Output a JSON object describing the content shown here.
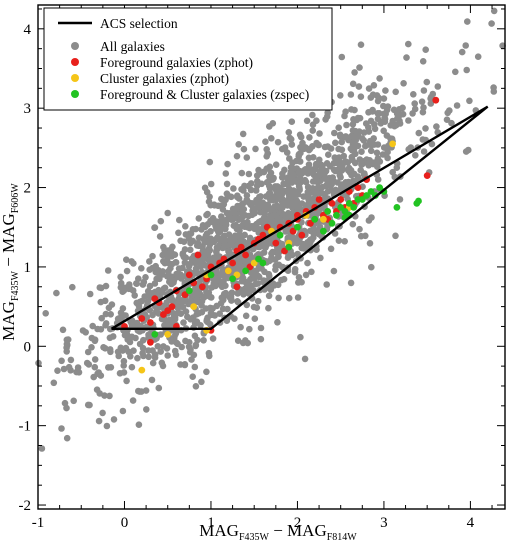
{
  "chart_data": {
    "type": "scatter",
    "title": "",
    "xlabel": {
      "base": "MAG",
      "sub1": "F435W",
      "dash": " − ",
      "base2": "MAG",
      "sub2": "F814W"
    },
    "ylabel": {
      "base": "MAG",
      "sub1": "F435W",
      "dash": " − ",
      "base2": "MAG",
      "sub2": "F606W"
    },
    "xlim": [
      -1,
      4.4
    ],
    "ylim": [
      -2.05,
      4.3
    ],
    "xticks": [
      "-1",
      "0",
      "1",
      "2",
      "3",
      "4"
    ],
    "yticks": [
      "-2",
      "-1",
      "0",
      "1",
      "2",
      "3",
      "4"
    ],
    "grid": false,
    "legend_position": "top-left",
    "legend": [
      {
        "label": "ACS selection",
        "kind": "line",
        "color": "#000000"
      },
      {
        "label": "All galaxies",
        "kind": "marker",
        "color": "#8c8c8c"
      },
      {
        "label": "Foreground galaxies (zphot)",
        "kind": "marker",
        "color": "#e8201c"
      },
      {
        "label": "Cluster galaxies (zphot)",
        "kind": "marker",
        "color": "#f5c518"
      },
      {
        "label": "Foreground & Cluster galaxies (zspec)",
        "kind": "marker",
        "color": "#22c322"
      }
    ],
    "selection_polygon": [
      [
        -0.15,
        0.22
      ],
      [
        1.0,
        0.22
      ],
      [
        4.2,
        3.02
      ],
      [
        -0.15,
        0.22
      ]
    ],
    "all_galaxies_distribution": {
      "count": 1800,
      "x_mean": 1.5,
      "x_sd": 0.95,
      "slope": 0.78,
      "intercept": 0.22,
      "scatter": 0.5
    },
    "series": [
      {
        "name": "Foreground galaxies (zphot)",
        "color": "#e8201c",
        "x": [
          0.0,
          0.2,
          0.3,
          0.4,
          0.5,
          0.6,
          0.7,
          0.8,
          0.9,
          1.0,
          1.1,
          1.2,
          1.3,
          1.4,
          1.5,
          1.6,
          1.7,
          1.8,
          1.9,
          2.0,
          2.1,
          2.2,
          2.3,
          2.4,
          2.5,
          2.6,
          2.7,
          2.8,
          0.35,
          0.55,
          0.75,
          0.95,
          1.15,
          1.35,
          1.55,
          1.75,
          1.95,
          2.15,
          2.35,
          2.55,
          2.75,
          0.45,
          0.85,
          1.25,
          1.65,
          2.05,
          2.45,
          2.25,
          2.65,
          1.45,
          1.85,
          3.6,
          3.5,
          0.6,
          0.3,
          1.0,
          2.0,
          1.3
        ],
        "y": [
          0.25,
          0.35,
          0.3,
          0.55,
          0.45,
          0.7,
          0.65,
          0.8,
          0.75,
          1.0,
          1.05,
          0.95,
          1.2,
          1.15,
          1.3,
          1.4,
          1.45,
          1.5,
          1.55,
          1.6,
          1.7,
          1.75,
          1.65,
          1.8,
          1.85,
          1.95,
          2.0,
          2.1,
          0.6,
          0.5,
          0.9,
          0.85,
          1.1,
          1.25,
          1.35,
          1.3,
          1.45,
          1.55,
          1.6,
          1.75,
          1.9,
          0.4,
          1.15,
          1.05,
          1.5,
          1.4,
          1.7,
          1.85,
          1.8,
          1.0,
          1.2,
          3.1,
          2.15,
          0.25,
          0.05,
          0.2,
          1.65,
          0.75
        ]
      },
      {
        "name": "Cluster galaxies (zphot)",
        "color": "#f5c518",
        "x": [
          0.2,
          0.5,
          0.8,
          0.95,
          1.3,
          1.5,
          1.9,
          2.3,
          2.6,
          3.1,
          1.7,
          2.1,
          0.95,
          1.2
        ],
        "y": [
          -0.3,
          0.15,
          0.5,
          0.2,
          0.9,
          1.05,
          1.3,
          1.6,
          1.75,
          2.55,
          1.45,
          1.65,
          0.9,
          0.95
        ]
      },
      {
        "name": "Foreground & Cluster galaxies (zspec)",
        "color": "#22c322",
        "x": [
          0.35,
          0.75,
          1.0,
          1.25,
          1.55,
          1.8,
          2.0,
          2.2,
          2.35,
          2.45,
          2.5,
          2.55,
          2.6,
          2.65,
          2.7,
          2.75,
          2.8,
          2.85,
          2.9,
          2.95,
          3.0,
          3.4,
          3.38,
          3.15,
          2.6,
          2.4,
          2.55,
          2.3,
          1.9,
          1.6,
          1.4
        ],
        "y": [
          0.15,
          0.7,
          0.9,
          0.85,
          1.1,
          1.4,
          1.5,
          1.6,
          1.7,
          1.65,
          1.75,
          1.7,
          1.8,
          1.75,
          1.85,
          1.85,
          1.9,
          1.95,
          1.9,
          2.0,
          1.95,
          1.83,
          1.8,
          1.75,
          1.65,
          1.55,
          1.62,
          1.45,
          1.25,
          1.05,
          0.95
        ]
      }
    ]
  }
}
